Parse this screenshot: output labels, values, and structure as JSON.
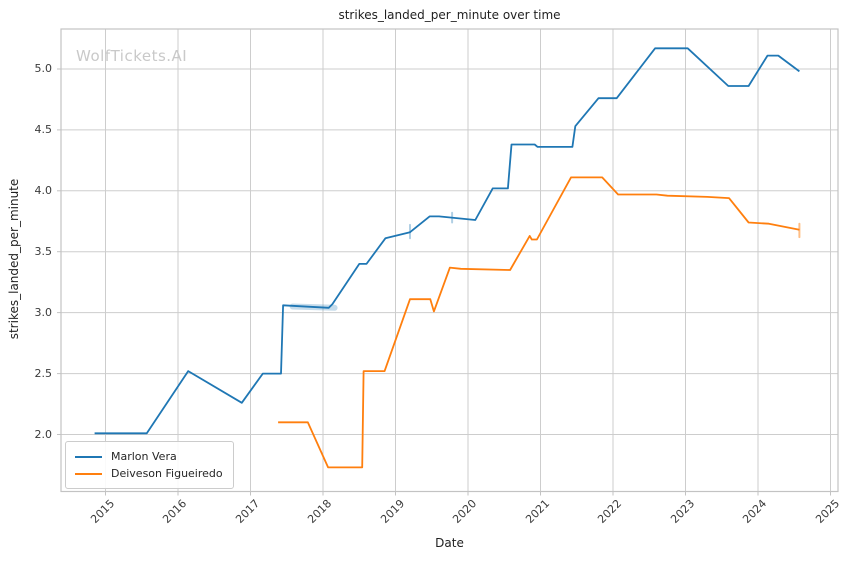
{
  "watermark": {
    "text": "WolfTickets.AI"
  },
  "colors": {
    "background": "#ffffff",
    "grid": "#cdcdcd",
    "spine": "#c3c3c3",
    "tick_mark": "#c3c3c3",
    "tick_text": "#3a3a3a",
    "title_text": "#1f1f1f",
    "watermark_text": "#c9c9c9",
    "series_blue": "#1f77b4",
    "series_orange": "#ff7f0e"
  },
  "chart_data": {
    "type": "line",
    "title": "strikes_landed_per_minute over time",
    "xlabel": "Date",
    "ylabel": "strikes_landed_per_minute",
    "grid": true,
    "legend_position": "lower left",
    "xlim": [
      2014.386,
      2025.103
    ],
    "ylim": [
      1.532,
      5.328
    ],
    "x_ticks": [
      {
        "v": 2015,
        "label": "2015"
      },
      {
        "v": 2016,
        "label": "2016"
      },
      {
        "v": 2017,
        "label": "2017"
      },
      {
        "v": 2018,
        "label": "2018"
      },
      {
        "v": 2019,
        "label": "2019"
      },
      {
        "v": 2020,
        "label": "2020"
      },
      {
        "v": 2021,
        "label": "2021"
      },
      {
        "v": 2022,
        "label": "2022"
      },
      {
        "v": 2023,
        "label": "2023"
      },
      {
        "v": 2024,
        "label": "2024"
      },
      {
        "v": 2025,
        "label": "2025"
      }
    ],
    "y_ticks": [
      {
        "v": 2.0,
        "label": "2.0"
      },
      {
        "v": 2.5,
        "label": "2.5"
      },
      {
        "v": 3.0,
        "label": "3.0"
      },
      {
        "v": 3.5,
        "label": "3.5"
      },
      {
        "v": 4.0,
        "label": "4.0"
      },
      {
        "v": 4.5,
        "label": "4.5"
      },
      {
        "v": 5.0,
        "label": "5.0"
      }
    ],
    "series": [
      {
        "name": "Marlon Vera",
        "color": "#1f77b4",
        "points": [
          [
            2014.85,
            2.01
          ],
          [
            2015.57,
            2.01
          ],
          [
            2016.14,
            2.52
          ],
          [
            2016.88,
            2.26
          ],
          [
            2017.17,
            2.5
          ],
          [
            2017.42,
            2.5
          ],
          [
            2017.45,
            3.06
          ],
          [
            2018.08,
            3.04
          ],
          [
            2018.13,
            3.07
          ],
          [
            2018.5,
            3.4
          ],
          [
            2018.6,
            3.4
          ],
          [
            2018.86,
            3.61
          ],
          [
            2019.2,
            3.66
          ],
          [
            2019.47,
            3.79
          ],
          [
            2019.6,
            3.79
          ],
          [
            2020.1,
            3.76
          ],
          [
            2020.34,
            4.02
          ],
          [
            2020.55,
            4.02
          ],
          [
            2020.6,
            4.38
          ],
          [
            2020.92,
            4.38
          ],
          [
            2020.96,
            4.36
          ],
          [
            2021.44,
            4.36
          ],
          [
            2021.48,
            4.53
          ],
          [
            2021.8,
            4.76
          ],
          [
            2022.05,
            4.76
          ],
          [
            2022.58,
            5.17
          ],
          [
            2023.03,
            5.17
          ],
          [
            2023.59,
            4.86
          ],
          [
            2023.87,
            4.86
          ],
          [
            2024.13,
            5.11
          ],
          [
            2024.28,
            5.11
          ],
          [
            2024.57,
            4.98
          ]
        ]
      },
      {
        "name": "Deiveson Figueiredo",
        "color": "#ff7f0e",
        "points": [
          [
            2017.38,
            2.1
          ],
          [
            2017.79,
            2.1
          ],
          [
            2018.07,
            1.73
          ],
          [
            2018.54,
            1.73
          ],
          [
            2018.56,
            2.52
          ],
          [
            2018.85,
            2.52
          ],
          [
            2019.2,
            3.11
          ],
          [
            2019.48,
            3.11
          ],
          [
            2019.53,
            3.01
          ],
          [
            2019.75,
            3.37
          ],
          [
            2019.9,
            3.36
          ],
          [
            2020.58,
            3.35
          ],
          [
            2020.85,
            3.63
          ],
          [
            2020.88,
            3.6
          ],
          [
            2020.95,
            3.6
          ],
          [
            2021.42,
            4.11
          ],
          [
            2021.85,
            4.11
          ],
          [
            2022.07,
            3.97
          ],
          [
            2022.6,
            3.97
          ],
          [
            2022.75,
            3.96
          ],
          [
            2023.3,
            3.95
          ],
          [
            2023.6,
            3.94
          ],
          [
            2023.87,
            3.74
          ],
          [
            2024.15,
            3.73
          ],
          [
            2024.57,
            3.68
          ]
        ]
      }
    ],
    "uncertainty_marks": [
      {
        "series": 0,
        "x1": 2017.58,
        "y1": 3.05,
        "x2": 2018.16,
        "y2": 3.04,
        "width": 6,
        "opacity": 0.25
      },
      {
        "series": 0,
        "x1": 2019.2,
        "y1": 3.61,
        "x2": 2019.2,
        "y2": 3.72,
        "width": 2,
        "opacity": 0.35
      },
      {
        "series": 0,
        "x1": 2019.78,
        "y1": 3.74,
        "x2": 2019.78,
        "y2": 3.82,
        "width": 2,
        "opacity": 0.35
      },
      {
        "series": 1,
        "x1": 2024.57,
        "y1": 3.62,
        "x2": 2024.57,
        "y2": 3.73,
        "width": 2,
        "opacity": 0.5
      }
    ]
  }
}
